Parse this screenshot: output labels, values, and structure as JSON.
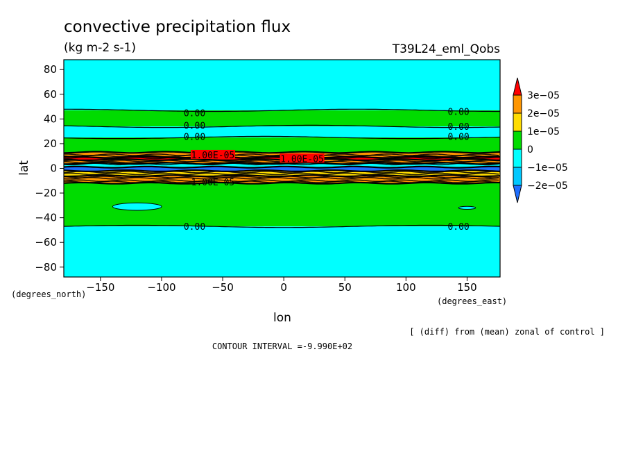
{
  "chart_data": {
    "type": "heatmap",
    "title": "convective precipitation flux",
    "subtitle": "(kg m-2 s-1)",
    "experiment": "T39L24_eml_Qobs",
    "xlabel": "lon",
    "ylabel": "lat",
    "x_unit_label": "(degrees_east)",
    "y_unit_label": "(degrees_north)",
    "xlim": [
      -180,
      177
    ],
    "ylim": [
      -88,
      88
    ],
    "x_ticks": [
      -150,
      -100,
      -50,
      0,
      50,
      100,
      150
    ],
    "y_ticks": [
      80,
      60,
      40,
      20,
      0,
      -20,
      -40,
      -60,
      -80
    ],
    "x_tick_labels": [
      "−150",
      "−100",
      "−50",
      "0",
      "50",
      "100",
      "150"
    ],
    "y_tick_labels": [
      "80",
      "60",
      "40",
      "20",
      "0",
      "−20",
      "−40",
      "−60",
      "−80"
    ],
    "colorbar": {
      "labels": [
        "3e−05",
        "2e−05",
        "1e−05",
        "0",
        "−1e−05",
        "−2e−05"
      ],
      "levels": [
        -2e-05,
        -1e-05,
        0,
        1e-05,
        2e-05,
        3e-05
      ],
      "colors": [
        "#1e6eff",
        "#00c8ff",
        "#00ffff",
        "#00dc00",
        "#ffdc00",
        "#ff9600",
        "#ff0000"
      ]
    },
    "zonal_bands": [
      {
        "lat_from": 88,
        "lat_to": 47,
        "color": "#00ffff"
      },
      {
        "lat_from": 47,
        "lat_to": 34,
        "color": "#00dc00"
      },
      {
        "lat_from": 34,
        "lat_to": 25,
        "color": "#00ffff"
      },
      {
        "lat_from": 25,
        "lat_to": 13,
        "color": "#00dc00"
      },
      {
        "lat_from": 13,
        "lat_to": 9,
        "color": "#ff9600"
      },
      {
        "lat_from": 9,
        "lat_to": 7,
        "color": "#ff0000"
      },
      {
        "lat_from": 7,
        "lat_to": 4,
        "color": "#ff9600"
      },
      {
        "lat_from": 4,
        "lat_to": 1,
        "color": "#00ffff"
      },
      {
        "lat_from": 1,
        "lat_to": -2,
        "color": "#1e6eff"
      },
      {
        "lat_from": -2,
        "lat_to": -6,
        "color": "#ffdc00"
      },
      {
        "lat_from": -6,
        "lat_to": -12,
        "color": "#ff9600"
      },
      {
        "lat_from": -12,
        "lat_to": -47,
        "color": "#00dc00"
      },
      {
        "lat_from": -47,
        "lat_to": -88,
        "color": "#00ffff"
      }
    ],
    "contour_labels": [
      {
        "text": "0.00",
        "lon": -73,
        "lat": 45
      },
      {
        "text": "0.00",
        "lon": 143,
        "lat": 46
      },
      {
        "text": "0.00",
        "lon": -73,
        "lat": 35
      },
      {
        "text": "0.00",
        "lon": 143,
        "lat": 34
      },
      {
        "text": "0.00",
        "lon": -73,
        "lat": 26
      },
      {
        "text": "0.00",
        "lon": 143,
        "lat": 26
      },
      {
        "text": "1.00E-05",
        "lon": -58,
        "lat": 11
      },
      {
        "text": "1.00E-05",
        "lon": 15,
        "lat": 8
      },
      {
        "text": "1.00E-05",
        "lon": -58,
        "lat": -11
      },
      {
        "text": "0.00",
        "lon": -73,
        "lat": -47
      },
      {
        "text": "0.00",
        "lon": 143,
        "lat": -47
      }
    ],
    "anomaly_patches": [
      {
        "lon": -120,
        "lat": -31,
        "lon_radius": 20,
        "lat_radius": 3,
        "color": "#00ffff"
      },
      {
        "lon": 150,
        "lat": -32,
        "lon_radius": 7,
        "lat_radius": 1.2,
        "color": "#00ffff"
      }
    ],
    "contour_interval_text": "CONTOUR INTERVAL =-9.990E+02",
    "note": "[ (diff) from (mean) zonal of control ]"
  }
}
